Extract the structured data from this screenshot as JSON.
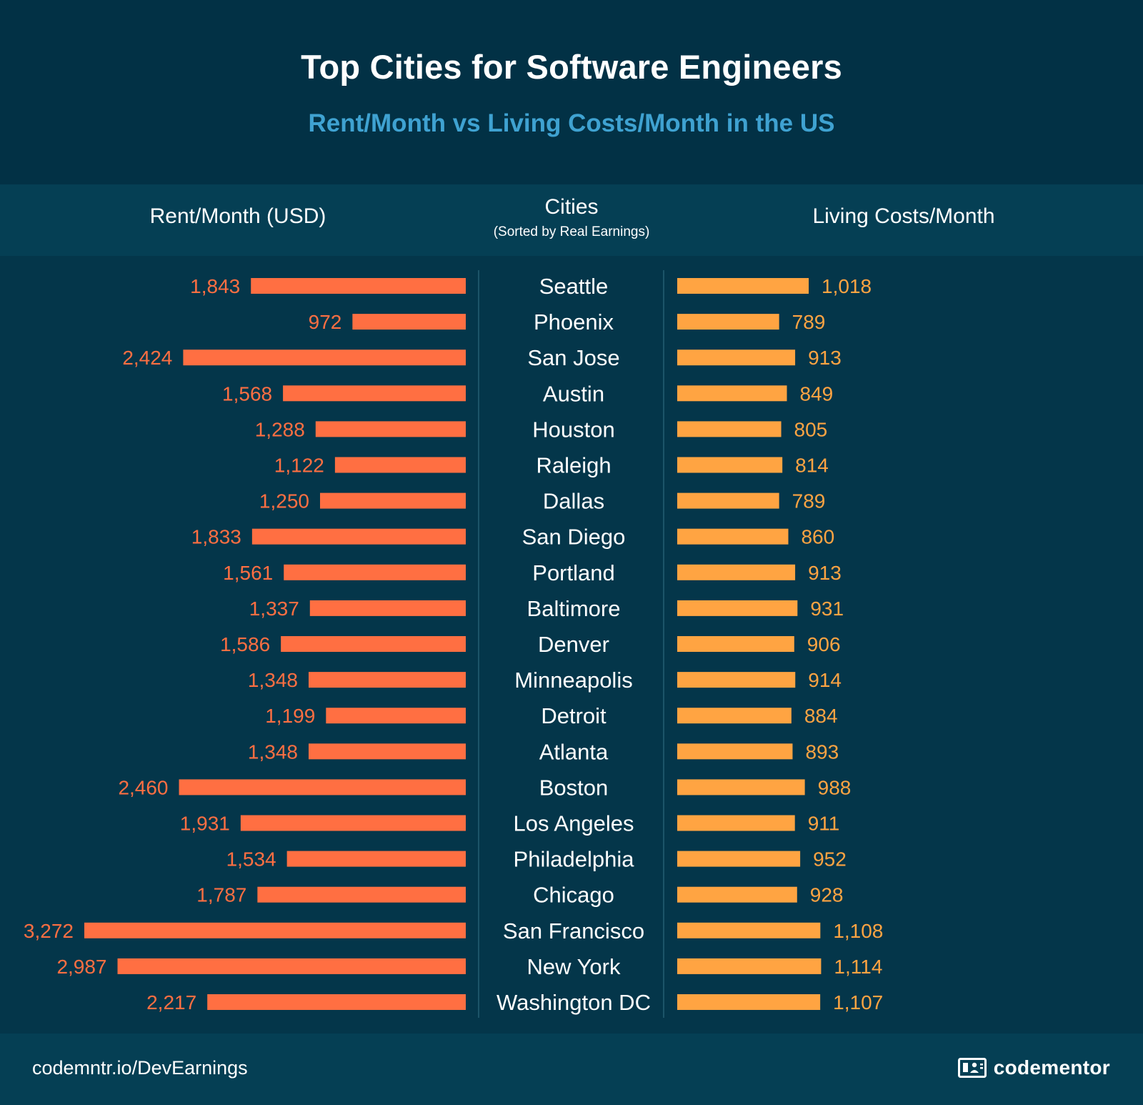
{
  "title": "Top Cities for Software Engineers",
  "subtitle": "Rent/Month vs Living Costs/Month in the US",
  "headers": {
    "rent": "Rent/Month (USD)",
    "cities": "Cities",
    "cities_sub": "(Sorted by Real Earnings)",
    "living": "Living Costs/Month"
  },
  "footer": {
    "link": "codemntr.io/DevEarnings",
    "brand": "codementor",
    "brand_icon": "codementor-logo-icon"
  },
  "colors": {
    "background": "#04364a",
    "rent_bar": "#ff6f42",
    "living_bar": "#ffa442",
    "subtitle": "#3fa2d1"
  },
  "chart_data": {
    "type": "bar",
    "orientation": "horizontal",
    "categories": [
      "Seattle",
      "Phoenix",
      "San Jose",
      "Austin",
      "Houston",
      "Raleigh",
      "Dallas",
      "San Diego",
      "Portland",
      "Baltimore",
      "Denver",
      "Minneapolis",
      "Detroit",
      "Atlanta",
      "Boston",
      "Los Angeles",
      "Philadelphia",
      "Chicago",
      "San Francisco",
      "New York",
      "Washington DC"
    ],
    "series": [
      {
        "name": "Rent/Month (USD)",
        "values": [
          1843,
          972,
          2424,
          1568,
          1288,
          1122,
          1250,
          1833,
          1561,
          1337,
          1586,
          1348,
          1199,
          1348,
          2460,
          1931,
          1534,
          1787,
          3272,
          2987,
          2217
        ],
        "labels": [
          "1,843",
          "972",
          "2,424",
          "1,568",
          "1,288",
          "1,122",
          "1,250",
          "1,833",
          "1,561",
          "1,337",
          "1,586",
          "1,348",
          "1,199",
          "1,348",
          "2,460",
          "1,931",
          "1,534",
          "1,787",
          "3,272",
          "2,987",
          "2,217"
        ]
      },
      {
        "name": "Living Costs/Month",
        "values": [
          1018,
          789,
          913,
          849,
          805,
          814,
          789,
          860,
          913,
          931,
          906,
          914,
          884,
          893,
          988,
          911,
          952,
          928,
          1108,
          1114,
          1107
        ],
        "labels": [
          "1,018",
          "789",
          "913",
          "849",
          "805",
          "814",
          "789",
          "860",
          "913",
          "931",
          "906",
          "914",
          "884",
          "893",
          "988",
          "911",
          "952",
          "928",
          "1,108",
          "1,114",
          "1,107"
        ]
      }
    ]
  }
}
